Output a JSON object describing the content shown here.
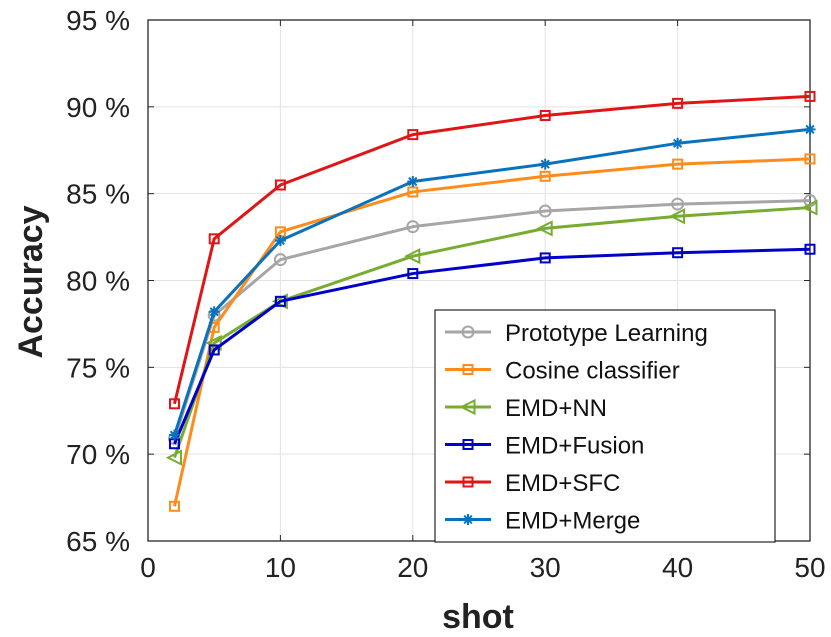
{
  "chart_data": {
    "type": "line",
    "title": "",
    "xlabel": "shot",
    "ylabel": "Accuracy",
    "xlim": [
      0,
      50
    ],
    "ylim": [
      65,
      95
    ],
    "grid": true,
    "legend_position": "bottom-right",
    "x_ticks": [
      0,
      10,
      20,
      30,
      40,
      50
    ],
    "y_ticks": [
      65,
      70,
      75,
      80,
      85,
      90,
      95
    ],
    "x_tick_labels": [
      "0",
      "10",
      "20",
      "30",
      "40",
      "50"
    ],
    "y_tick_labels": [
      "65 %",
      "70 %",
      "75 %",
      "80 %",
      "85 %",
      "90 %",
      "95 %"
    ],
    "x": [
      2,
      5,
      10,
      20,
      30,
      40,
      50
    ],
    "series": [
      {
        "name": "Prototype Learning",
        "color": "#a6a6a6",
        "marker": "circle",
        "values": [
          70.9,
          78.0,
          81.2,
          83.1,
          84.0,
          84.4,
          84.6
        ]
      },
      {
        "name": "Cosine classifier",
        "color": "#ff8c1a",
        "marker": "square",
        "values": [
          67.0,
          77.3,
          82.8,
          85.1,
          86.0,
          86.7,
          87.0
        ]
      },
      {
        "name": "EMD+NN",
        "color": "#77ac30",
        "marker": "triangle-left",
        "values": [
          69.8,
          76.4,
          78.8,
          81.4,
          83.0,
          83.7,
          84.2
        ]
      },
      {
        "name": "EMD+Fusion",
        "color": "#0000c8",
        "marker": "square",
        "values": [
          70.6,
          76.0,
          78.8,
          80.4,
          81.3,
          81.6,
          81.8
        ]
      },
      {
        "name": "EMD+SFC",
        "color": "#e01515",
        "marker": "square",
        "values": [
          72.9,
          82.4,
          85.5,
          88.4,
          89.5,
          90.2,
          90.6
        ]
      },
      {
        "name": "EMD+Merge",
        "color": "#0a72bd",
        "marker": "asterisk",
        "values": [
          71.1,
          78.2,
          82.3,
          85.7,
          86.7,
          87.9,
          88.7
        ]
      }
    ]
  }
}
